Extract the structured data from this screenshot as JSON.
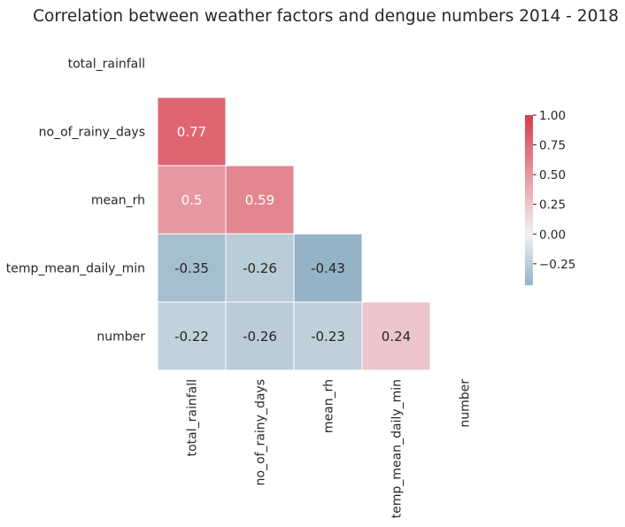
{
  "chart_data": {
    "type": "heatmap",
    "title": "Correlation between weather factors and dengue numbers 2014 - 2018",
    "variables": [
      "total_rainfall",
      "no_of_rainy_days",
      "mean_rh",
      "temp_mean_daily_min",
      "number"
    ],
    "mask": "upper-triangle-including-diagonal",
    "cells": [
      {
        "row": "no_of_rainy_days",
        "col": "total_rainfall",
        "value": 0.77,
        "label": "0.77"
      },
      {
        "row": "mean_rh",
        "col": "total_rainfall",
        "value": 0.5,
        "label": "0.5"
      },
      {
        "row": "mean_rh",
        "col": "no_of_rainy_days",
        "value": 0.59,
        "label": "0.59"
      },
      {
        "row": "temp_mean_daily_min",
        "col": "total_rainfall",
        "value": -0.35,
        "label": "-0.35"
      },
      {
        "row": "temp_mean_daily_min",
        "col": "no_of_rainy_days",
        "value": -0.26,
        "label": "-0.26"
      },
      {
        "row": "temp_mean_daily_min",
        "col": "mean_rh",
        "value": -0.43,
        "label": "-0.43"
      },
      {
        "row": "number",
        "col": "total_rainfall",
        "value": -0.22,
        "label": "-0.22"
      },
      {
        "row": "number",
        "col": "no_of_rainy_days",
        "value": -0.26,
        "label": "-0.26"
      },
      {
        "row": "number",
        "col": "mean_rh",
        "value": -0.23,
        "label": "-0.23"
      },
      {
        "row": "number",
        "col": "temp_mean_daily_min",
        "value": 0.24,
        "label": "0.24"
      }
    ],
    "colorbar": {
      "range": [
        -0.43,
        1.0
      ],
      "ticks": [
        {
          "value": 1.0,
          "label": "1.00"
        },
        {
          "value": 0.75,
          "label": "0.75"
        },
        {
          "value": 0.5,
          "label": "0.50"
        },
        {
          "value": 0.25,
          "label": "0.25"
        },
        {
          "value": 0.0,
          "label": "0.00"
        },
        {
          "value": -0.25,
          "label": "−0.25"
        }
      ]
    },
    "colors": {
      "negative": "#94b3c7",
      "neutral": "#f2f2f2",
      "positive": "#da3b4c",
      "text_light": "#ffffff",
      "text_dark": "#262626"
    }
  }
}
